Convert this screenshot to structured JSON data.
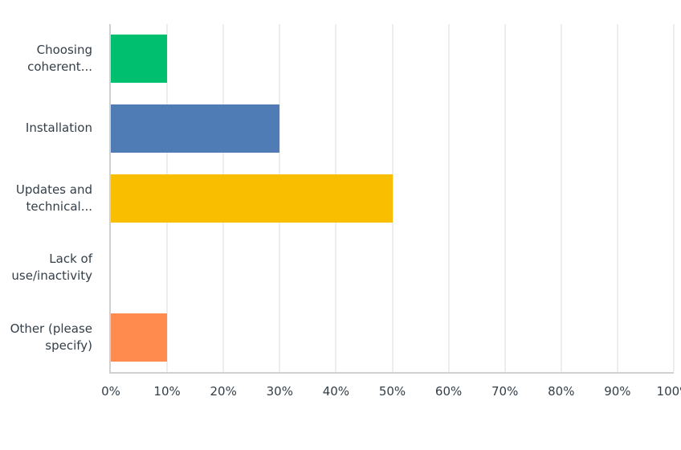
{
  "chart_data": {
    "type": "bar",
    "orientation": "horizontal",
    "title": "",
    "xlabel": "",
    "ylabel": "",
    "categories": [
      "Choosing coherent...",
      "Installation",
      "Updates and technical...",
      "Lack of use/inactivity",
      "Other (please specify)"
    ],
    "category_display": [
      "Choosing\ncoherent...",
      "Installation",
      "Updates and\ntechnical...",
      "Lack of\nuse/inactivity",
      "Other (please\nspecify)"
    ],
    "values": [
      10,
      30,
      50,
      0,
      10
    ],
    "colors": [
      "#00bf6f",
      "#507cb6",
      "#f9be00",
      "#6bc8cd",
      "#ff8b4f"
    ],
    "xlim": [
      0,
      100
    ],
    "x_ticks": [
      "0%",
      "10%",
      "20%",
      "30%",
      "40%",
      "50%",
      "60%",
      "70%",
      "80%",
      "90%",
      "100%"
    ],
    "grid": true,
    "legend": null
  }
}
